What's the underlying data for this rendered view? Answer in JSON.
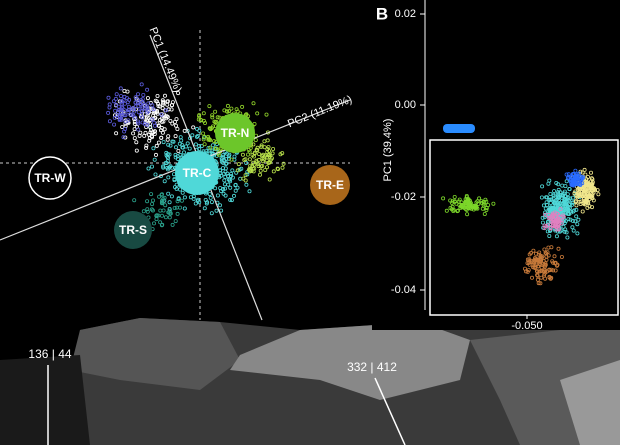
{
  "panel_a": {
    "axes": [
      "PC1 (14.49%)",
      "PC2 (11.19%)"
    ],
    "groups": [
      "TR-W",
      "TR-N",
      "TR-C",
      "TR-E",
      "TR-S"
    ]
  },
  "panel_b": {
    "label": "B",
    "y_label": "PC1 (39.4%)",
    "y_ticks": [
      "0.02",
      "0.00",
      "-0.02",
      "-0.04"
    ],
    "x_ticks": [
      "-0.050"
    ]
  },
  "map": {
    "labels": [
      "136 | 44",
      "332 | 412"
    ]
  }
}
